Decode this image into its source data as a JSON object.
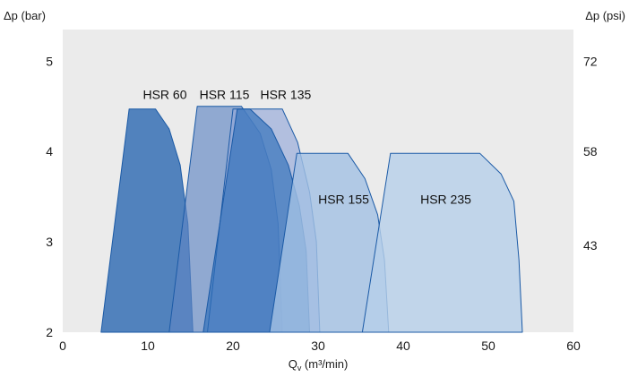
{
  "chart_data": {
    "type": "area",
    "ylabel_left": "Δp (bar)",
    "ylabel_right": "Δp (psi)",
    "xlabel_main": "Q",
    "xlabel_sub": "v",
    "xlabel_unit": " (m³/min)",
    "xlim": [
      0,
      60
    ],
    "ylim": [
      2,
      5.35
    ],
    "x_ticks": [
      0,
      10,
      20,
      30,
      40,
      50,
      60
    ],
    "y_ticks": [
      2,
      3,
      4,
      5
    ],
    "y_ticks_right": [
      {
        "label": "72",
        "bar": 5.0
      },
      {
        "label": "58",
        "bar": 4.0
      },
      {
        "label": "43",
        "bar": 2.96
      }
    ],
    "grid": false,
    "plot_background": "#ebebeb",
    "series": [
      {
        "name": "HSR 60",
        "color": "#1e5fae",
        "opacity": 0.75,
        "outline": [
          [
            4.5,
            2.0
          ],
          [
            7.8,
            4.47
          ],
          [
            10.9,
            4.47
          ],
          [
            12.5,
            4.25
          ],
          [
            13.8,
            3.85
          ],
          [
            14.7,
            3.2
          ],
          [
            15.3,
            2.0
          ]
        ],
        "label_at": [
          12.0,
          4.58
        ]
      },
      {
        "name": "HSR 115",
        "color": "#5f86c3",
        "opacity": 0.65,
        "outline": [
          [
            12.5,
            2.0
          ],
          [
            15.8,
            4.5
          ],
          [
            21.0,
            4.5
          ],
          [
            23.2,
            4.2
          ],
          [
            24.5,
            3.8
          ],
          [
            25.3,
            3.2
          ],
          [
            25.8,
            2.0
          ]
        ],
        "label_at": [
          19.0,
          4.58
        ]
      },
      {
        "name": "HSR 135",
        "color": "#93a8d8",
        "opacity": 0.65,
        "outline": [
          [
            17.0,
            2.0
          ],
          [
            20.0,
            4.47
          ],
          [
            25.8,
            4.47
          ],
          [
            27.6,
            4.1
          ],
          [
            29.0,
            3.55
          ],
          [
            29.8,
            3.0
          ],
          [
            30.2,
            2.0
          ]
        ],
        "label_at": [
          26.2,
          4.58
        ]
      },
      {
        "name": "",
        "color": "#2d6db9",
        "opacity": 0.65,
        "outline": [
          [
            16.5,
            2.0
          ],
          [
            20.5,
            4.47
          ],
          [
            22.0,
            4.47
          ],
          [
            24.5,
            4.25
          ],
          [
            26.5,
            3.85
          ],
          [
            27.8,
            3.4
          ],
          [
            28.6,
            2.9
          ],
          [
            29.0,
            2.0
          ]
        ],
        "label_at": null
      },
      {
        "name": "HSR 155",
        "color": "#a2c0e4",
        "opacity": 0.8,
        "outline": [
          [
            24.3,
            2.0
          ],
          [
            27.5,
            3.98
          ],
          [
            33.5,
            3.98
          ],
          [
            35.5,
            3.7
          ],
          [
            37.0,
            3.3
          ],
          [
            37.8,
            2.8
          ],
          [
            38.3,
            2.0
          ]
        ],
        "label_at": [
          33.0,
          3.42
        ]
      },
      {
        "name": "HSR 235",
        "color": "#b7cfea",
        "opacity": 0.8,
        "outline": [
          [
            35.2,
            2.0
          ],
          [
            38.5,
            3.98
          ],
          [
            49.0,
            3.98
          ],
          [
            51.5,
            3.75
          ],
          [
            53.0,
            3.45
          ],
          [
            53.6,
            2.8
          ],
          [
            54.0,
            2.0
          ]
        ],
        "label_at": [
          45.0,
          3.42
        ]
      }
    ]
  }
}
